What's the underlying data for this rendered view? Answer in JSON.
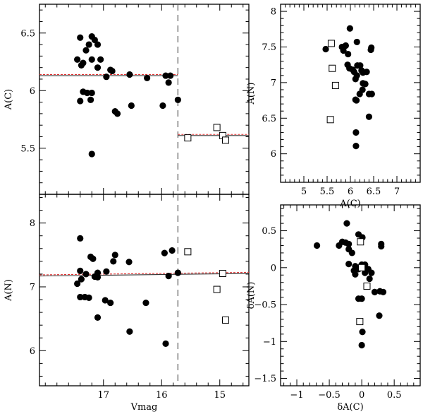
{
  "chart_data": [
    {
      "type": "scatter",
      "name": "top-left",
      "xlabel": "",
      "ylabel": "A(C)",
      "xlim": [
        18.1,
        14.5
      ],
      "ylim": [
        5.1,
        6.75
      ],
      "xticks": [],
      "yticks": [
        5.5,
        6,
        6.5
      ],
      "ytick_labels": [
        "5.5",
        "6",
        "6.5"
      ],
      "vline": 15.72,
      "segments": [
        {
          "x0": 18.1,
          "x1": 15.72,
          "y": 6.13
        },
        {
          "x0": 15.72,
          "x1": 14.5,
          "y": 5.61
        }
      ],
      "series": [
        {
          "name": "filled",
          "marker": "circle",
          "points": [
            [
              17.4,
              6.46
            ],
            [
              17.2,
              6.47
            ],
            [
              17.15,
              6.44
            ],
            [
              17.25,
              6.4
            ],
            [
              17.1,
              6.4
            ],
            [
              17.3,
              6.35
            ],
            [
              17.45,
              6.27
            ],
            [
              17.2,
              6.27
            ],
            [
              17.35,
              6.24
            ],
            [
              17.38,
              6.22
            ],
            [
              17.1,
              6.2
            ],
            [
              17.05,
              6.27
            ],
            [
              16.88,
              6.18
            ],
            [
              16.85,
              6.17
            ],
            [
              16.95,
              6.12
            ],
            [
              16.55,
              6.14
            ],
            [
              16.25,
              6.11
            ],
            [
              15.93,
              6.13
            ],
            [
              15.85,
              6.13
            ],
            [
              15.88,
              6.07
            ],
            [
              17.35,
              5.99
            ],
            [
              17.28,
              5.98
            ],
            [
              17.2,
              5.98
            ],
            [
              17.4,
              5.91
            ],
            [
              17.22,
              5.92
            ],
            [
              15.72,
              5.92
            ],
            [
              16.52,
              5.87
            ],
            [
              15.98,
              5.87
            ],
            [
              16.8,
              5.82
            ],
            [
              16.76,
              5.8
            ],
            [
              17.2,
              5.45
            ]
          ]
        },
        {
          "name": "open",
          "marker": "square",
          "points": [
            [
              15.55,
              5.59
            ],
            [
              15.05,
              5.68
            ],
            [
              14.95,
              5.61
            ],
            [
              14.9,
              5.57
            ]
          ]
        }
      ]
    },
    {
      "type": "scatter",
      "name": "top-right",
      "xlabel": "A(C)",
      "ylabel": "A(N)",
      "xlim": [
        4.5,
        7.5
      ],
      "ylim": [
        5.6,
        8.1
      ],
      "xticks": [
        5,
        5.5,
        6,
        6.5,
        7
      ],
      "xtick_labels": [
        "5",
        "5.5",
        "6",
        "6.5",
        "7"
      ],
      "yticks": [
        6,
        6.5,
        7,
        7.5,
        8
      ],
      "ytick_labels": [
        "6",
        "6.5",
        "7",
        "7.5",
        "8"
      ],
      "series": [
        {
          "name": "filled",
          "marker": "circle",
          "points": [
            [
              5.99,
              7.76
            ],
            [
              6.14,
              7.57
            ],
            [
              5.47,
              7.47
            ],
            [
              5.82,
              7.5
            ],
            [
              5.85,
              7.45
            ],
            [
              5.9,
              7.52
            ],
            [
              5.95,
              7.4
            ],
            [
              6.45,
              7.49
            ],
            [
              6.44,
              7.46
            ],
            [
              5.94,
              7.25
            ],
            [
              5.98,
              7.2
            ],
            [
              6.05,
              7.18
            ],
            [
              6.08,
              7.15
            ],
            [
              6.15,
              7.24
            ],
            [
              6.21,
              7.24
            ],
            [
              6.24,
              7.17
            ],
            [
              6.27,
              7.14
            ],
            [
              6.35,
              7.15
            ],
            [
              6.14,
              7.1
            ],
            [
              6.11,
              7.05
            ],
            [
              6.27,
              6.99
            ],
            [
              6.32,
              6.98
            ],
            [
              6.26,
              6.9
            ],
            [
              6.2,
              6.84
            ],
            [
              6.4,
              6.84
            ],
            [
              6.46,
              6.84
            ],
            [
              6.11,
              6.76
            ],
            [
              6.13,
              6.75
            ],
            [
              6.4,
              6.52
            ],
            [
              6.12,
              6.3
            ],
            [
              6.12,
              6.11
            ]
          ]
        },
        {
          "name": "open",
          "marker": "square",
          "points": [
            [
              5.59,
              7.55
            ],
            [
              5.61,
              7.2
            ],
            [
              5.68,
              6.96
            ],
            [
              5.57,
              6.48
            ]
          ]
        }
      ]
    },
    {
      "type": "scatter",
      "name": "bottom-left",
      "xlabel": "Vmag",
      "ylabel": "A(N)",
      "xlim": [
        18.1,
        14.5
      ],
      "ylim": [
        5.45,
        8.45
      ],
      "xticks": [
        17,
        16,
        15
      ],
      "xtick_labels": [
        "17",
        "16",
        "15"
      ],
      "yticks": [
        6,
        7,
        8
      ],
      "ytick_labels": [
        "6",
        "7",
        "8"
      ],
      "vline": 15.72,
      "segments": [
        {
          "x0": 18.1,
          "x1": 14.5,
          "y0": 7.17,
          "y1": 7.21
        }
      ],
      "series": [
        {
          "name": "filled",
          "marker": "circle",
          "points": [
            [
              17.4,
              7.76
            ],
            [
              15.82,
              7.57
            ],
            [
              15.95,
              7.53
            ],
            [
              16.8,
              7.5
            ],
            [
              17.22,
              7.47
            ],
            [
              17.18,
              7.44
            ],
            [
              16.83,
              7.4
            ],
            [
              16.56,
              7.39
            ],
            [
              17.4,
              7.25
            ],
            [
              16.95,
              7.24
            ],
            [
              17.1,
              7.22
            ],
            [
              17.3,
              7.2
            ],
            [
              17.15,
              7.16
            ],
            [
              17.1,
              7.15
            ],
            [
              17.38,
              7.12
            ],
            [
              15.72,
              7.22
            ],
            [
              15.88,
              7.17
            ],
            [
              17.45,
              7.05
            ],
            [
              17.4,
              6.84
            ],
            [
              17.32,
              6.84
            ],
            [
              17.25,
              6.83
            ],
            [
              16.97,
              6.79
            ],
            [
              16.88,
              6.75
            ],
            [
              16.27,
              6.75
            ],
            [
              17.1,
              6.52
            ],
            [
              16.55,
              6.3
            ],
            [
              15.93,
              6.11
            ]
          ]
        },
        {
          "name": "open",
          "marker": "square",
          "points": [
            [
              15.55,
              7.55
            ],
            [
              14.95,
              7.21
            ],
            [
              15.05,
              6.96
            ],
            [
              14.9,
              6.48
            ]
          ]
        }
      ]
    },
    {
      "type": "scatter",
      "name": "bottom-right",
      "xlabel": "δA(C)",
      "ylabel": "δA(N)",
      "xlim": [
        -1.25,
        0.9
      ],
      "ylim": [
        -1.6,
        0.85
      ],
      "xticks": [
        -1,
        -0.5,
        0,
        0.5
      ],
      "xtick_labels": [
        "−1",
        "−0.5",
        "0",
        "0.5"
      ],
      "yticks": [
        -1.5,
        -1,
        -0.5,
        0,
        0.5
      ],
      "ytick_labels": [
        "−1.5",
        "−1",
        "−0.5",
        "0",
        "0.5"
      ],
      "series": [
        {
          "name": "filled",
          "marker": "circle",
          "points": [
            [
              -0.23,
              0.6
            ],
            [
              -0.05,
              0.45
            ],
            [
              0.01,
              0.41
            ],
            [
              -0.3,
              0.35
            ],
            [
              -0.25,
              0.34
            ],
            [
              -0.2,
              0.32
            ],
            [
              -0.35,
              0.3
            ],
            [
              0.3,
              0.32
            ],
            [
              0.3,
              0.29
            ],
            [
              -0.2,
              0.25
            ],
            [
              -0.15,
              0.2
            ],
            [
              -0.2,
              0.05
            ],
            [
              -0.1,
              0.02
            ],
            [
              0.0,
              0.04
            ],
            [
              0.05,
              0.04
            ],
            [
              -0.05,
              -0.02
            ],
            [
              -0.12,
              -0.04
            ],
            [
              0.1,
              -0.02
            ],
            [
              0.05,
              -0.07
            ],
            [
              0.15,
              -0.07
            ],
            [
              -0.1,
              -0.09
            ],
            [
              0.12,
              -0.15
            ],
            [
              0.28,
              -0.32
            ],
            [
              0.33,
              -0.33
            ],
            [
              0.2,
              -0.33
            ],
            [
              0.2,
              -0.33
            ],
            [
              -0.05,
              -0.42
            ],
            [
              0.0,
              -0.42
            ],
            [
              0.27,
              -0.65
            ],
            [
              -0.69,
              0.3
            ],
            [
              0.01,
              -0.87
            ],
            [
              0.0,
              -1.05
            ]
          ]
        },
        {
          "name": "open",
          "marker": "square",
          "points": [
            [
              -0.02,
              0.35
            ],
            [
              0.0,
              0.0
            ],
            [
              0.08,
              -0.25
            ],
            [
              -0.03,
              -0.73
            ]
          ]
        }
      ]
    }
  ]
}
